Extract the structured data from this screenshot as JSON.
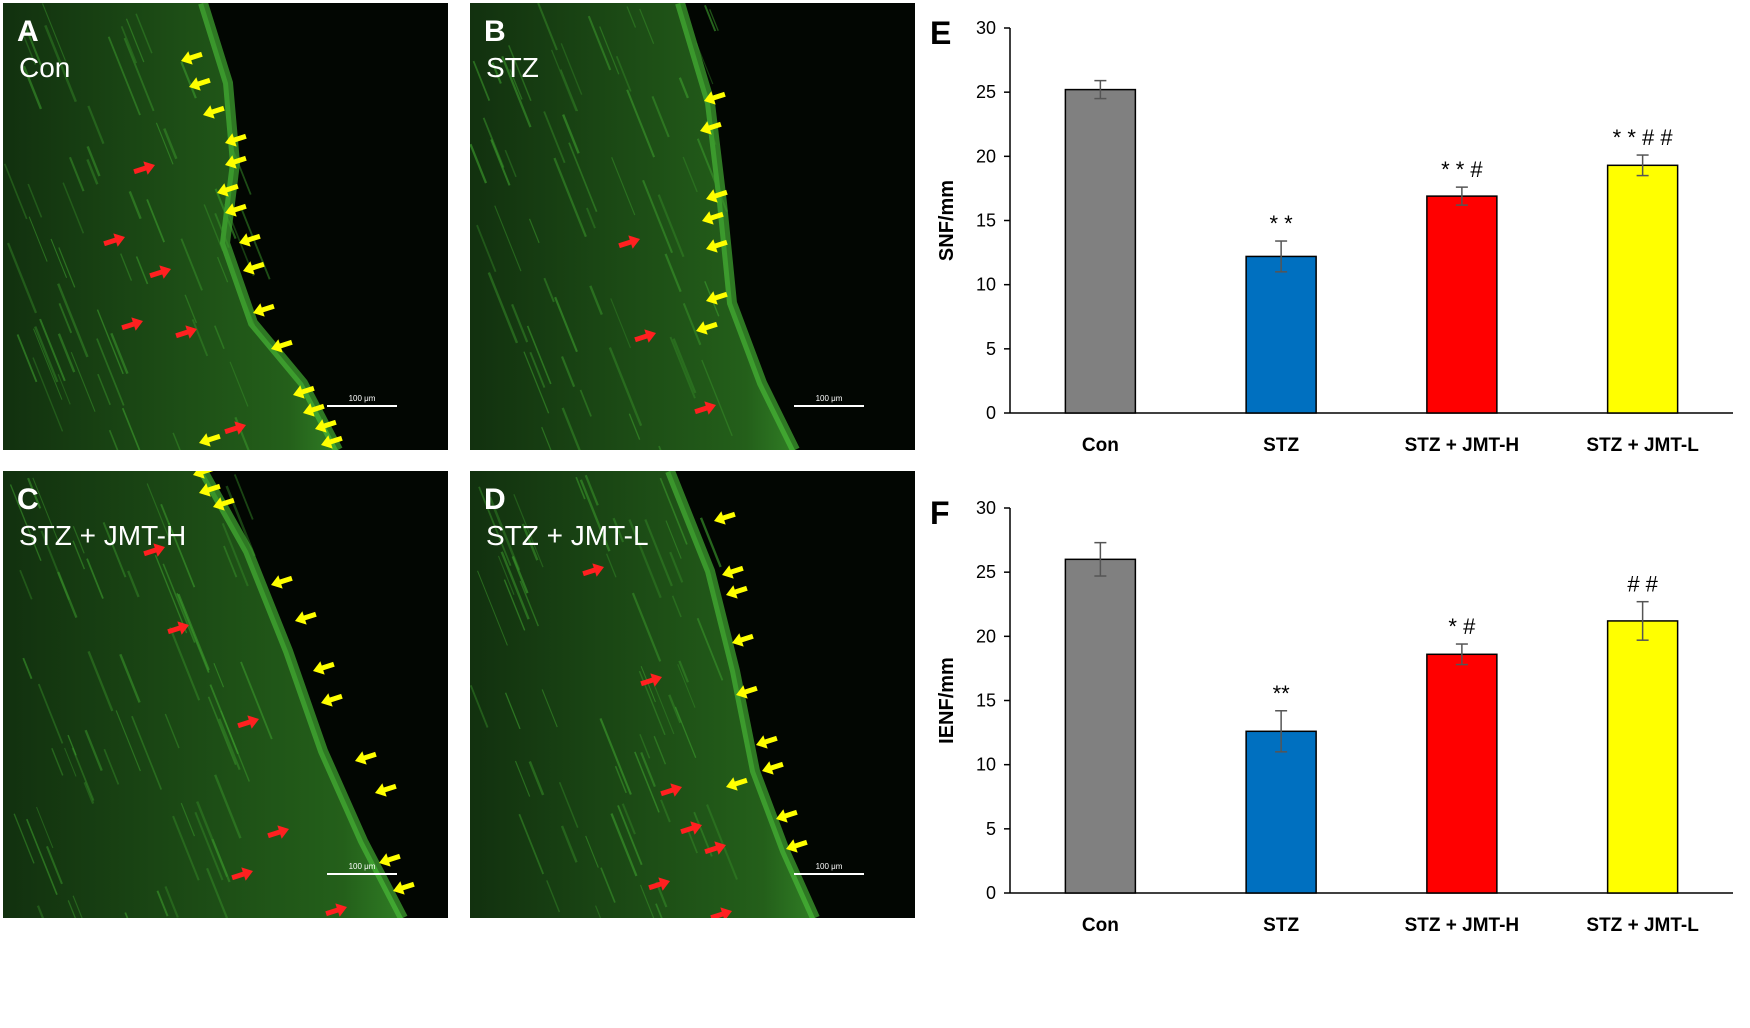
{
  "micrographs": [
    {
      "id": "A",
      "group": "Con",
      "scale_label": "100 μm",
      "red_arrows": 6,
      "yellow_arrows": 16
    },
    {
      "id": "B",
      "group": "STZ",
      "scale_label": "100 μm",
      "red_arrows": 3,
      "yellow_arrows": 7
    },
    {
      "id": "C",
      "group": "STZ + JMT-H",
      "scale_label": "100 μm",
      "red_arrows": 6,
      "yellow_arrows": 11
    },
    {
      "id": "D",
      "group": "STZ + JMT-L",
      "scale_label": "100 μm",
      "red_arrows": 7,
      "yellow_arrows": 10
    }
  ],
  "colors": {
    "micrograph_bg": "#020602",
    "tissue_green": "#2f7d22",
    "red_arrow": "#ff2020",
    "yellow_arrow": "#ffff00",
    "Con": "#808080",
    "STZ": "#0070c0",
    "STZ + JMT-H": "#ff0000",
    "STZ + JMT-L": "#ffff00"
  },
  "chart_data": [
    {
      "panel": "E",
      "type": "bar",
      "categories": [
        "Con",
        "STZ",
        "STZ + JMT-H",
        "STZ + JMT-L"
      ],
      "values": [
        25.2,
        12.2,
        16.9,
        19.3
      ],
      "errors": [
        0.7,
        1.2,
        0.7,
        0.8
      ],
      "annotations": [
        "",
        "* *",
        "* * #",
        "* *  # #"
      ],
      "ylabel": "SNF/mm",
      "xlabel": "",
      "ylim": [
        0,
        30
      ],
      "yticks": [
        0,
        5,
        10,
        15,
        20,
        25,
        30
      ],
      "grid": false
    },
    {
      "panel": "F",
      "type": "bar",
      "categories": [
        "Con",
        "STZ",
        "STZ + JMT-H",
        "STZ + JMT-L"
      ],
      "values": [
        26.0,
        12.6,
        18.6,
        21.2
      ],
      "errors": [
        1.3,
        1.6,
        0.8,
        1.5
      ],
      "annotations": [
        "",
        "**",
        "* #",
        "# #"
      ],
      "ylabel": "IENF/mm",
      "xlabel": "",
      "ylim": [
        0,
        30
      ],
      "yticks": [
        0,
        5,
        10,
        15,
        20,
        25,
        30
      ],
      "grid": false
    }
  ]
}
